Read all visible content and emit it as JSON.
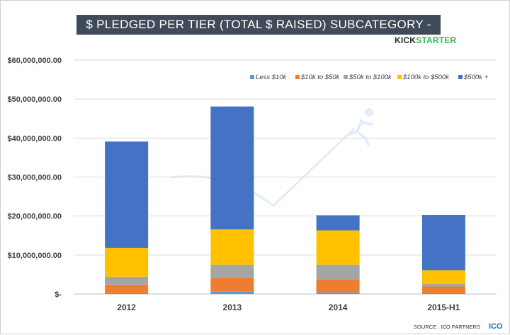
{
  "chart_data": {
    "type": "bar",
    "stacked": true,
    "title": "$ PLEDGED PER TIER (TOTAL $ RAISED) SUBCATEGORY - VIDEO GAMES",
    "brand": {
      "part1": "KICK",
      "part2": "STARTER"
    },
    "source_text": "SOURCE : ICO PARTNERS",
    "source_logo": "ICO",
    "categories": [
      "2012",
      "2013",
      "2014",
      "2015-H1"
    ],
    "y_ticks": [
      "$-",
      "$10,000,000.00",
      "$20,000,000.00",
      "$30,000,000.00",
      "$40,000,000.00",
      "$50,000,000.00",
      "$60,000,000.00"
    ],
    "ylim": [
      0,
      60000000
    ],
    "grid": true,
    "legend_position": "top-right",
    "series": [
      {
        "name": "Less $10k",
        "color": "#5b9bd5",
        "values": [
          200000,
          600000,
          400000,
          200000
        ]
      },
      {
        "name": "$10k to $50k",
        "color": "#ed7d31",
        "values": [
          2200000,
          3600000,
          3300000,
          1700000
        ]
      },
      {
        "name": "$50k to $100k",
        "color": "#a5a5a5",
        "values": [
          2000000,
          3300000,
          3800000,
          700000
        ]
      },
      {
        "name": "$100k to $500k",
        "color": "#ffc000",
        "values": [
          7400000,
          9100000,
          8800000,
          3500000
        ]
      },
      {
        "name": "$500k +",
        "color": "#4472c4",
        "values": [
          27300000,
          31500000,
          3900000,
          14200000
        ]
      }
    ]
  }
}
